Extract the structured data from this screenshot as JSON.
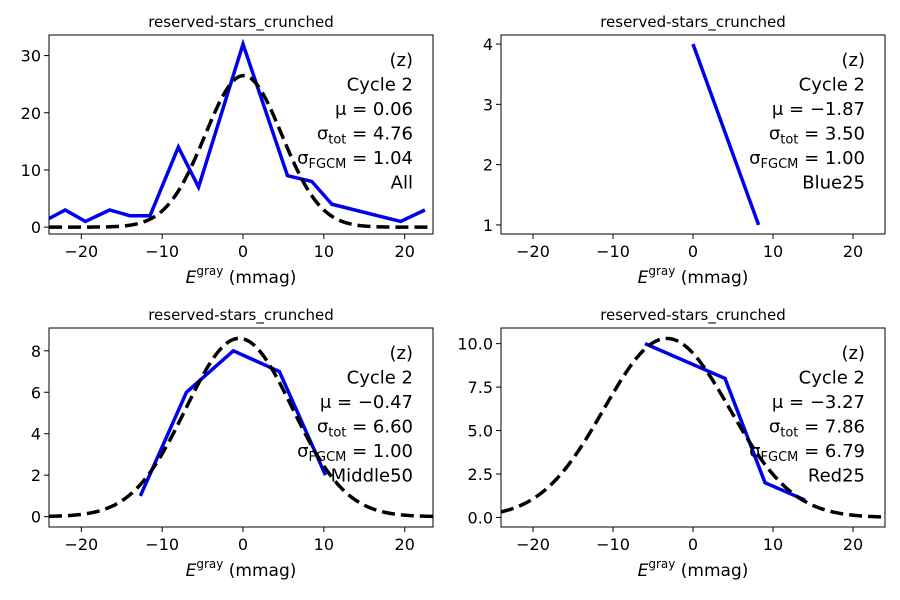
{
  "chart_data": [
    {
      "type": "line",
      "title": "reserved-stars_crunched",
      "xlabel": "E^gray (mmag)",
      "xlabel_base": "E",
      "xlabel_sup": "gray",
      "xlabel_unit": "(mmag)",
      "xlim": [
        -24,
        23.5
      ],
      "ylim": [
        -1.2,
        33.6
      ],
      "xticks": [
        -20,
        -10,
        0,
        10,
        20
      ],
      "xtick_labels": [
        "−20",
        "−10",
        "0",
        "10",
        "20"
      ],
      "yticks": [
        0,
        10,
        20,
        30
      ],
      "ytick_labels": [
        "0",
        "10",
        "20",
        "30"
      ],
      "grid": false,
      "series": [
        {
          "style": "solid",
          "color": "#0000ee",
          "x": [
            -24,
            -22,
            -19.5,
            -16.5,
            -14,
            -11.5,
            -8,
            -5.5,
            0,
            5.5,
            8.5,
            11,
            19.5,
            22.5
          ],
          "y": [
            1.5,
            3,
            1,
            3,
            2,
            2,
            14,
            7,
            32,
            9,
            8,
            4,
            1,
            3
          ]
        },
        {
          "style": "dashed",
          "color": "#000000",
          "gauss": {
            "amplitude": 26.5,
            "mu": 0.06,
            "sigma": 4.76
          }
        }
      ],
      "annotations": [
        "(z)",
        "Cycle 2",
        "μ = 0.06",
        "σ_tot = 4.76",
        "σ_FGCM = 1.04",
        "All"
      ]
    },
    {
      "type": "line",
      "title": "reserved-stars_crunched",
      "xlabel": "E^gray (mmag)",
      "xlabel_base": "E",
      "xlabel_sup": "gray",
      "xlabel_unit": "(mmag)",
      "xlim": [
        -24,
        24
      ],
      "ylim": [
        0.85,
        4.15
      ],
      "xticks": [
        -20,
        -10,
        0,
        10,
        20
      ],
      "xtick_labels": [
        "−20",
        "−10",
        "0",
        "10",
        "20"
      ],
      "yticks": [
        1,
        2,
        3,
        4
      ],
      "ytick_labels": [
        "1",
        "2",
        "3",
        "4"
      ],
      "grid": false,
      "series": [
        {
          "style": "solid",
          "color": "#0000ee",
          "x": [
            0,
            8.2
          ],
          "y": [
            4,
            1
          ]
        }
      ],
      "annotations": [
        "(z)",
        "Cycle 2",
        "μ = −1.87",
        "σ_tot = 3.50",
        "σ_FGCM = 1.00",
        "Blue25"
      ]
    },
    {
      "type": "line",
      "title": "reserved-stars_crunched",
      "xlabel": "E^gray (mmag)",
      "xlabel_base": "E",
      "xlabel_sup": "gray",
      "xlabel_unit": "(mmag)",
      "xlim": [
        -24,
        23.5
      ],
      "ylim": [
        -0.5,
        9.1
      ],
      "xticks": [
        -20,
        -10,
        0,
        10,
        20
      ],
      "xtick_labels": [
        "−20",
        "−10",
        "0",
        "10",
        "20"
      ],
      "yticks": [
        0,
        2,
        4,
        6,
        8
      ],
      "ytick_labels": [
        "0",
        "2",
        "4",
        "6",
        "8"
      ],
      "grid": false,
      "series": [
        {
          "style": "solid",
          "color": "#0000ee",
          "x": [
            -12.7,
            -7,
            -1.2,
            4.5,
            10.2
          ],
          "y": [
            1,
            6,
            8,
            7,
            2
          ]
        },
        {
          "style": "dashed",
          "color": "#000000",
          "gauss": {
            "amplitude": 8.6,
            "mu": -0.47,
            "sigma": 6.6
          }
        }
      ],
      "annotations": [
        "(z)",
        "Cycle 2",
        "μ = −0.47",
        "σ_tot = 6.60",
        "σ_FGCM = 1.00",
        "Middle50"
      ]
    },
    {
      "type": "line",
      "title": "reserved-stars_crunched",
      "xlabel": "E^gray (mmag)",
      "xlabel_base": "E",
      "xlabel_sup": "gray",
      "xlabel_unit": "(mmag)",
      "xlim": [
        -24,
        24
      ],
      "ylim": [
        -0.55,
        10.9
      ],
      "xticks": [
        -20,
        -10,
        0,
        10,
        20
      ],
      "xtick_labels": [
        "−20",
        "−10",
        "0",
        "10",
        "20"
      ],
      "yticks": [
        0,
        2.5,
        5,
        7.5,
        10
      ],
      "ytick_labels": [
        "0.0",
        "2.5",
        "5.0",
        "7.5",
        "10.0"
      ],
      "grid": false,
      "series": [
        {
          "style": "solid",
          "color": "#0000ee",
          "x": [
            -6,
            4,
            9,
            14
          ],
          "y": [
            10,
            8,
            2,
            1
          ]
        },
        {
          "style": "dashed",
          "color": "#000000",
          "gauss": {
            "amplitude": 10.3,
            "mu": -3.27,
            "sigma": 7.86
          }
        }
      ],
      "annotations": [
        "(z)",
        "Cycle 2",
        "μ = −3.27",
        "σ_tot = 7.86",
        "σ_FGCM = 6.79",
        "Red25"
      ]
    }
  ]
}
